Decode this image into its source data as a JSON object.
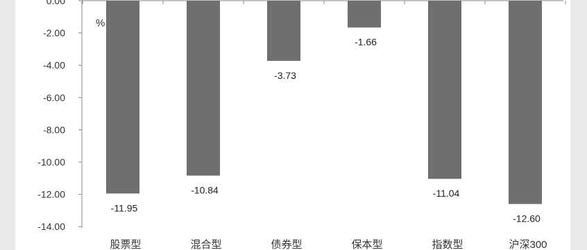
{
  "chart_data": {
    "type": "bar",
    "title": "",
    "xlabel": "",
    "ylabel": "%",
    "ylim": [
      -14,
      0
    ],
    "yticks": [
      "0.00",
      "-2.00",
      "-4.00",
      "-6.00",
      "-8.00",
      "-10.00",
      "-12.00",
      "-14.00"
    ],
    "grid": false,
    "categories": [
      "股票型",
      "混合型",
      "债券型",
      "保本型",
      "指数型",
      "沪深300"
    ],
    "values": [
      -11.95,
      -10.84,
      -3.73,
      -1.66,
      -11.04,
      -12.6
    ],
    "data_labels": [
      "-11.95",
      "-10.84",
      "-3.73",
      "-1.66",
      "-11.04",
      "-12.60"
    ],
    "bar_color": "#6f6f6f"
  }
}
